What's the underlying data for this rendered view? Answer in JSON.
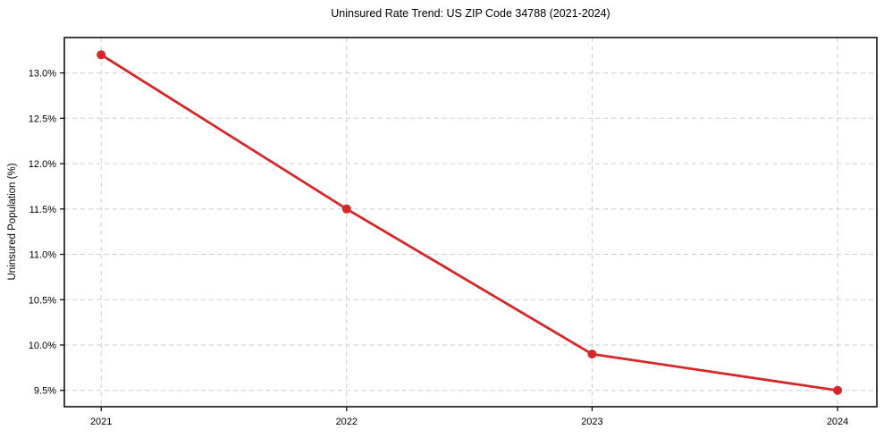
{
  "chart_data": {
    "type": "line",
    "title": "Uninsured Rate Trend: US ZIP Code 34788 (2021-2024)",
    "xlabel": "",
    "ylabel": "Uninsured Population (%)",
    "x": [
      2021,
      2022,
      2023,
      2024
    ],
    "x_tick_labels": [
      "2021",
      "2022",
      "2023",
      "2024"
    ],
    "series": [
      {
        "name": "uninsured-rate",
        "values": [
          13.2,
          11.5,
          9.9,
          9.5
        ]
      }
    ],
    "y_ticks": [
      9.5,
      10.0,
      10.5,
      11.0,
      11.5,
      12.0,
      12.5,
      13.0
    ],
    "y_tick_labels": [
      "9.5%",
      "10.0%",
      "10.5%",
      "11.0%",
      "11.5%",
      "12.0%",
      "12.5%",
      "13.0%"
    ],
    "xlim": [
      2020.85,
      2024.16
    ],
    "ylim": [
      9.32,
      13.39
    ],
    "grid": true,
    "grid_style": "dashed",
    "legend": "none",
    "styles": {
      "line_color": "#d62728",
      "marker_color": "#d62728",
      "grid_color": "#cdcdcd",
      "axis_color": "#000000",
      "background_color": "#ffffff",
      "text_color": "#000000"
    }
  }
}
